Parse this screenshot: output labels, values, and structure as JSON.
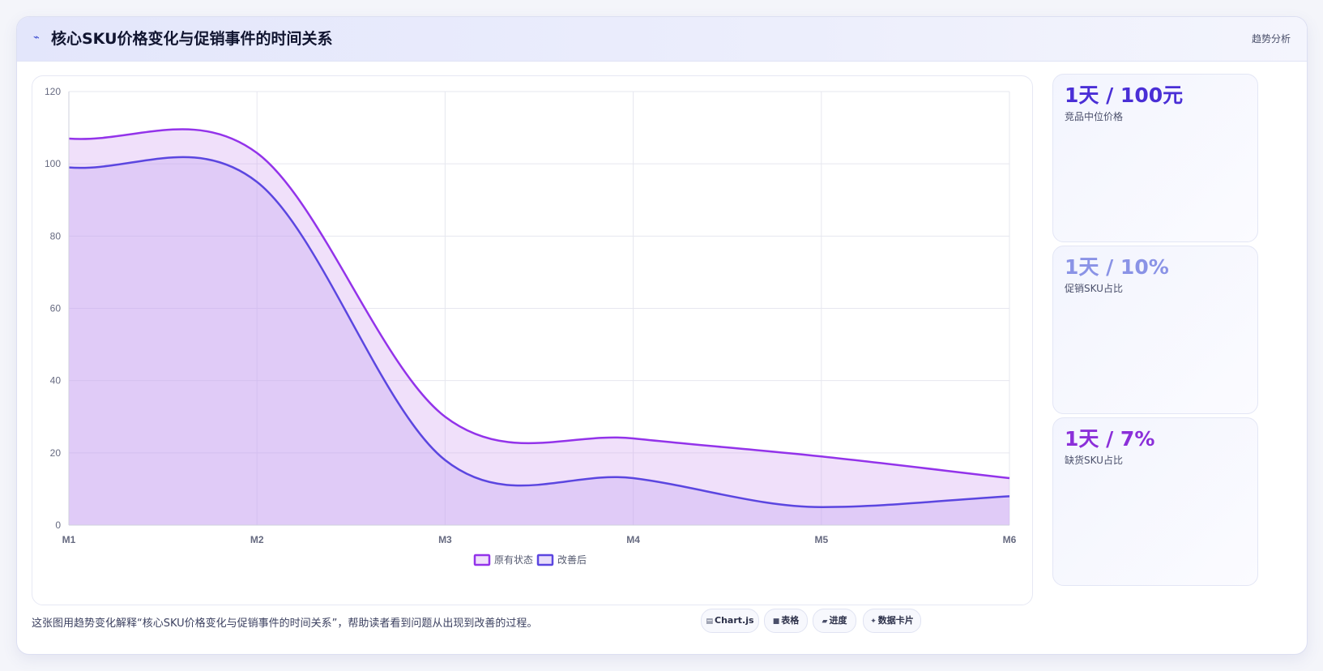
{
  "header": {
    "icon": "trend-line-icon",
    "title": "核心SKU价格变化与促销事件的时间关系",
    "tag": "趋势分析"
  },
  "chart_data": {
    "type": "area",
    "x": [
      "M1",
      "M2",
      "M3",
      "M4",
      "M5",
      "M6"
    ],
    "ylim": [
      0,
      120
    ],
    "yticks": [
      0,
      20,
      40,
      60,
      80,
      100,
      120
    ],
    "grid": true,
    "legend_position": "bottom",
    "series": [
      {
        "name": "原有状态",
        "values": [
          107,
          103,
          30,
          24,
          19,
          13
        ],
        "color": "#9333ea",
        "fill": "rgba(204,153,240,0.30)"
      },
      {
        "name": "改善后",
        "values": [
          99,
          95,
          18,
          13,
          5,
          8
        ],
        "color": "#5b46e0",
        "fill": "rgba(196,168,242,0.38)"
      }
    ]
  },
  "stats": [
    {
      "value": "1天 / 100元",
      "label": "竞品中位价格",
      "color": "#4a2fd6"
    },
    {
      "value": "1天 / 10%",
      "label": "促销SKU占比",
      "color": "#8a93e6"
    },
    {
      "value": "1天 / 7%",
      "label": "缺货SKU占比",
      "color": "#8b2fd9"
    }
  ],
  "caption": "这张图用趋势变化解释“核心SKU价格变化与促销事件的时间关系”，帮助读者看到问题从出现到改善的过程。",
  "chips": [
    {
      "icon": "chart-icon",
      "glyph": "▤",
      "label": "Chart.js"
    },
    {
      "icon": "table-icon",
      "glyph": "■",
      "label": "表格"
    },
    {
      "icon": "progress-icon",
      "glyph": "▰",
      "label": "进度"
    },
    {
      "icon": "sparkle-icon",
      "glyph": "✦",
      "label": "数据卡片"
    }
  ]
}
